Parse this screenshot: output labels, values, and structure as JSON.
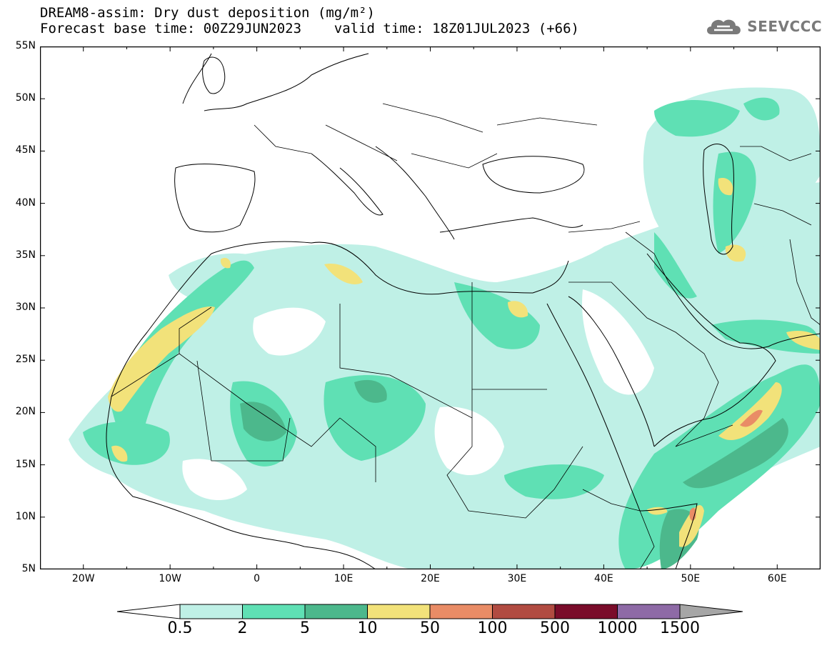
{
  "title": {
    "line1": "DREAM8-assim: Dry dust deposition (mg/m²)",
    "line2": "Forecast base time: 00Z29JUN2023    valid time: 18Z01JUL2023 (+66)"
  },
  "logo": {
    "text": "SEEVCCC",
    "icon": "cloud-icon"
  },
  "map": {
    "lon_range": [
      -25,
      65
    ],
    "lat_range": [
      5,
      55
    ],
    "lat_ticks": [
      "55N",
      "50N",
      "45N",
      "40N",
      "35N",
      "30N",
      "25N",
      "20N",
      "15N",
      "10N",
      "5N"
    ],
    "lon_ticks": [
      "20W",
      "10W",
      "0",
      "10E",
      "20E",
      "30E",
      "40E",
      "50E",
      "60E"
    ]
  },
  "legend": {
    "labels": [
      "0.5",
      "2",
      "5",
      "10",
      "50",
      "100",
      "500",
      "1000",
      "1500"
    ],
    "colors": [
      "#bff0e6",
      "#5fe0b4",
      "#4cb88c",
      "#f2e27a",
      "#e98c66",
      "#b14b41",
      "#7a0c2a",
      "#8e6aa6"
    ],
    "under_color": "#ffffff",
    "over_color": "#a6a6a6"
  }
}
